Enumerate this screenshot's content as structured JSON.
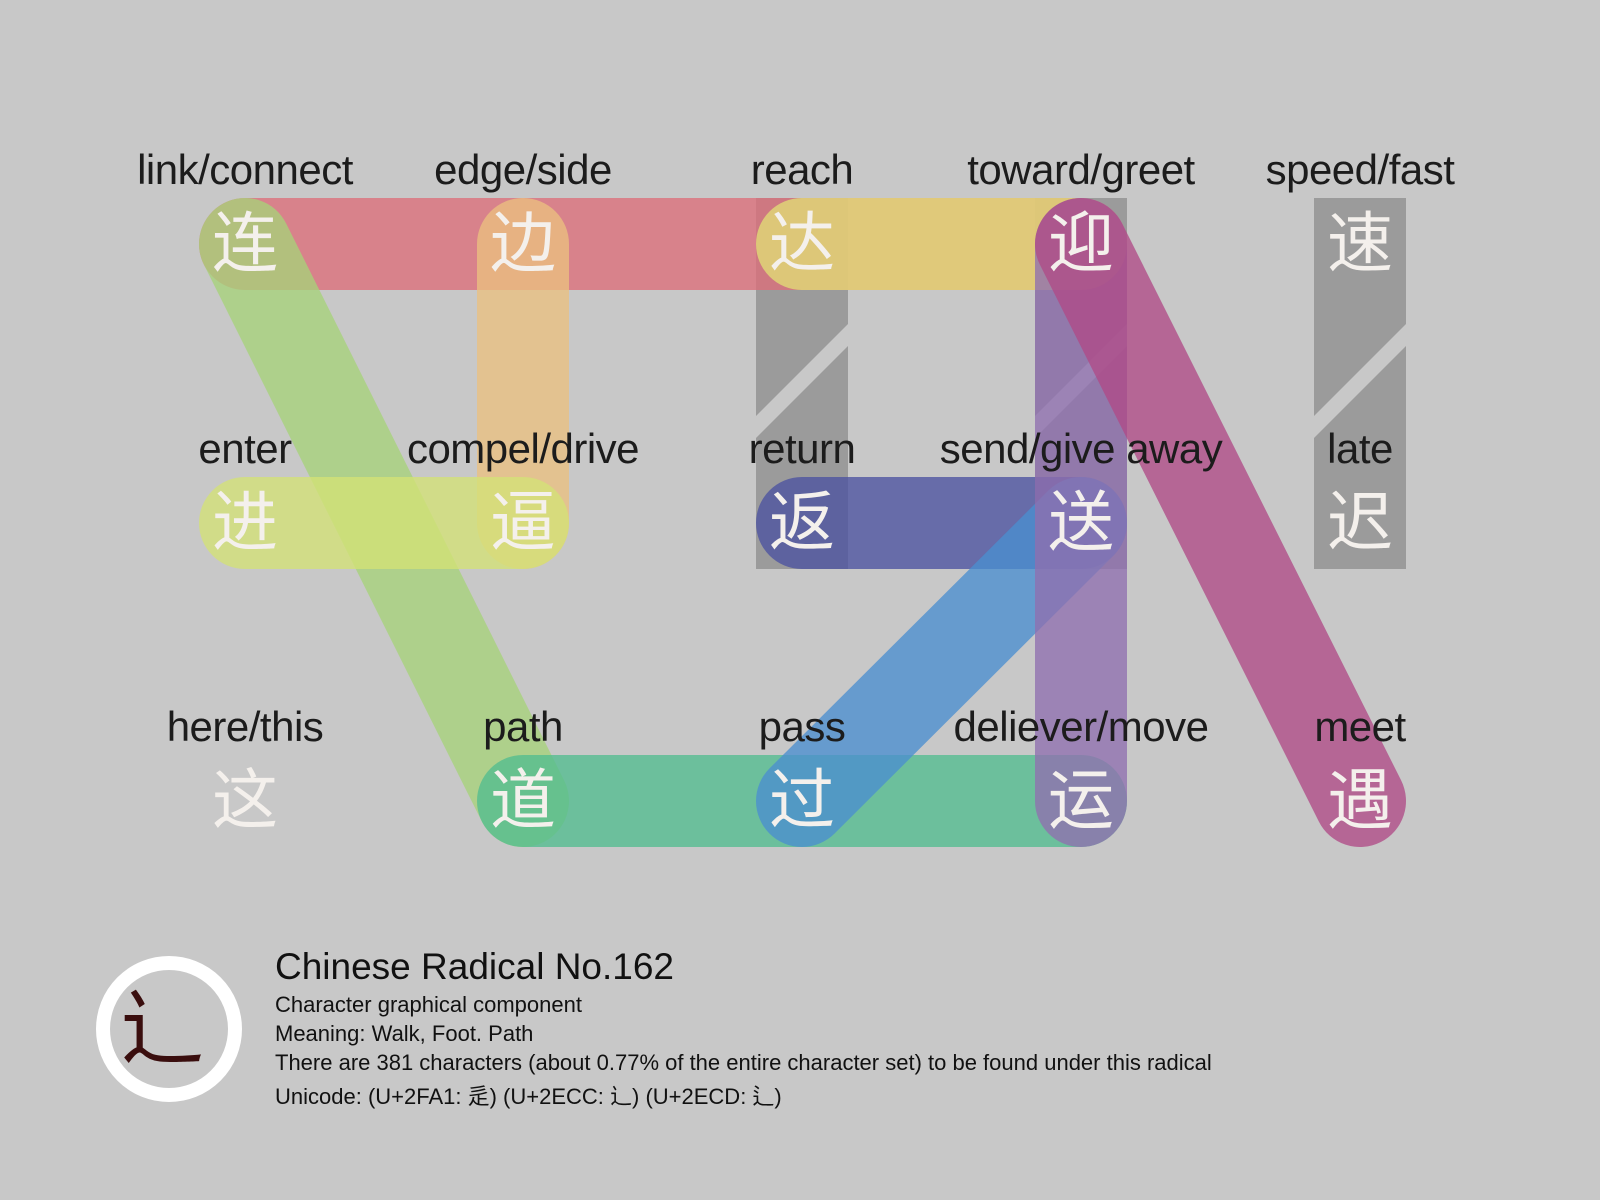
{
  "nodes": [
    {
      "id": "lian",
      "char": "连",
      "label": "link/connect"
    },
    {
      "id": "bian",
      "char": "边",
      "label": "edge/side"
    },
    {
      "id": "da",
      "char": "达",
      "label": "reach"
    },
    {
      "id": "ying",
      "char": "迎",
      "label": "toward/greet"
    },
    {
      "id": "su",
      "char": "速",
      "label": "speed/fast"
    },
    {
      "id": "jin",
      "char": "进",
      "label": "enter"
    },
    {
      "id": "bi",
      "char": "逼",
      "label": "compel/drive"
    },
    {
      "id": "fan",
      "char": "返",
      "label": "return"
    },
    {
      "id": "song",
      "char": "送",
      "label": "send/give away"
    },
    {
      "id": "chi",
      "char": "迟",
      "label": "late"
    },
    {
      "id": "zhe",
      "char": "这",
      "label": "here/this"
    },
    {
      "id": "dao",
      "char": "道",
      "label": "path"
    },
    {
      "id": "guo",
      "char": "过",
      "label": "pass"
    },
    {
      "id": "yun",
      "char": "运",
      "label": "deliever/move"
    },
    {
      "id": "yu",
      "char": "遇",
      "label": "meet"
    }
  ],
  "links": [
    {
      "from": "lian",
      "to": "ying",
      "color": "#dc6e7a"
    },
    {
      "from": "da",
      "to": "ying",
      "color": "#e2de76"
    },
    {
      "from": "bian",
      "to": "bi",
      "color": "#eac080"
    },
    {
      "from": "lian",
      "to": "dao",
      "color": "#a7d27a"
    },
    {
      "from": "jin",
      "to": "bi",
      "color": "#d4e276"
    },
    {
      "from": "fan",
      "to": "song",
      "color": "#4c52a0"
    },
    {
      "from": "dao",
      "to": "yun",
      "color": "#52bc90"
    },
    {
      "from": "guo",
      "to": "song",
      "color": "#4a8ed0"
    },
    {
      "from": "ying",
      "to": "yun",
      "color": "#9070b0"
    },
    {
      "from": "ying",
      "to": "yu",
      "color": "#b04a86"
    }
  ],
  "footer": {
    "title": "Chinese Radical No.162",
    "line1": "Character graphical component",
    "line2": "Meaning: Walk, Foot. Path",
    "line3": "There are 381 characters (about 0.77% of the entire character set) to be found under this radical",
    "line4": "Unicode: (U+2FA1: ⾡)   (U+2ECC: ⻌)   (U+2ECD: ⻍)",
    "logo_char": "⻌"
  },
  "colors": {
    "background": "#c8c8c8",
    "radical": "#8ef0ec",
    "glyph": "#f4f0ec",
    "gray_band": "#8c8c8c"
  }
}
